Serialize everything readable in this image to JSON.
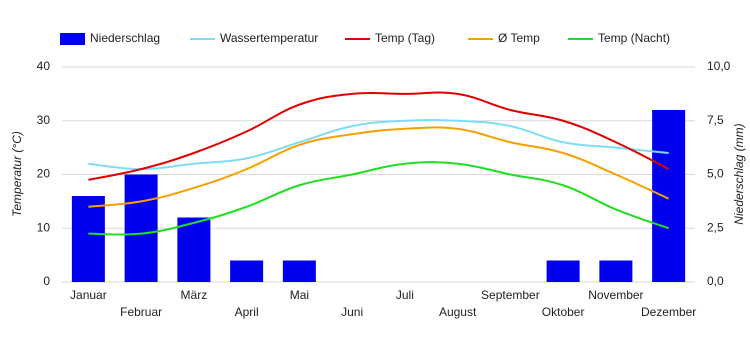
{
  "chart_data": {
    "type": "combo",
    "categories": [
      "Januar",
      "Februar",
      "März",
      "April",
      "Mai",
      "Juni",
      "Juli",
      "August",
      "September",
      "Oktober",
      "November",
      "Dezember"
    ],
    "y_label": "Temperatur (°C)",
    "y2_label": "Niederschlag (mm)",
    "ylim": [
      0,
      40
    ],
    "yticks": [
      0,
      10,
      20,
      30,
      40
    ],
    "y2lim": [
      0,
      10
    ],
    "y2ticks": [
      {
        "value": 0,
        "label": "0,0"
      },
      {
        "value": 2.5,
        "label": "2,5"
      },
      {
        "value": 5,
        "label": "5,0"
      },
      {
        "value": 7.5,
        "label": "7,5"
      },
      {
        "value": 10,
        "label": "10,0"
      }
    ],
    "grid": true,
    "series": [
      {
        "name": "Niederschlag",
        "type": "bar",
        "axis": "y2",
        "color": "#0000ee",
        "values": [
          4,
          5,
          3,
          1,
          1,
          0,
          0,
          0,
          0,
          1,
          1,
          8
        ]
      },
      {
        "name": "Wassertemperatur",
        "type": "line",
        "color": "#80dcf5",
        "values": [
          22,
          21,
          22,
          23,
          26,
          29,
          30,
          30,
          29,
          26,
          25,
          24
        ]
      },
      {
        "name": "Temp (Tag)",
        "type": "line",
        "color": "#e00000",
        "values": [
          19,
          21,
          24,
          28,
          33,
          35,
          35,
          35,
          32,
          30,
          26,
          21
        ]
      },
      {
        "name": "Ø Temp",
        "type": "line",
        "color": "#f5a000",
        "values": [
          14,
          15,
          17.5,
          21,
          25.5,
          27.5,
          28.5,
          28.5,
          26,
          24,
          20,
          15.5
        ]
      },
      {
        "name": "Temp (Nacht)",
        "type": "line",
        "color": "#22dd22",
        "values": [
          9,
          9,
          11,
          14,
          18,
          20,
          22,
          22,
          20,
          18,
          13.5,
          10
        ]
      }
    ]
  }
}
